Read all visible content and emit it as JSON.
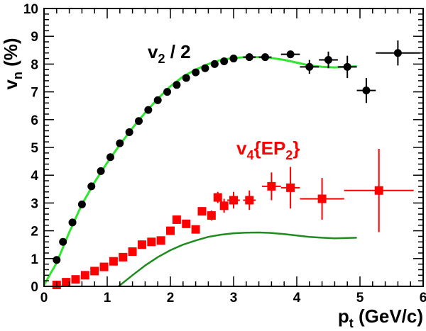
{
  "chart_data": {
    "type": "scatter",
    "title": "",
    "xlabel_main": "p",
    "xlabel_sub": "t",
    "xlabel_rest": " (GeV/c)",
    "ylabel_main": "v",
    "ylabel_sub": "n",
    "ylabel_rest": " (%)",
    "xlim": [
      0,
      6
    ],
    "ylim": [
      0,
      10
    ],
    "xticks": [
      "0",
      "1",
      "2",
      "3",
      "4",
      "5",
      "6"
    ],
    "yticks": [
      "0",
      "1",
      "2",
      "3",
      "4",
      "5",
      "6",
      "7",
      "8",
      "9",
      "10"
    ],
    "grid": false,
    "annotations": {
      "v2": {
        "main": "v",
        "sub": "2",
        "rest": " / 2",
        "color": "#000000"
      },
      "v4": {
        "main": "v",
        "sub": "4",
        "brace_open": "{EP",
        "sub2": "2",
        "brace_close": "}",
        "color": "#ff0000"
      }
    },
    "series": [
      {
        "marker": "circle",
        "color": "#000000",
        "points": [
          {
            "x": 0.2,
            "y": 0.95,
            "xerr": 0.04,
            "yerr": 0.05
          },
          {
            "x": 0.3,
            "y": 1.6,
            "xerr": 0.05,
            "yerr": 0.05
          },
          {
            "x": 0.45,
            "y": 2.3,
            "xerr": 0.05,
            "yerr": 0.05
          },
          {
            "x": 0.6,
            "y": 2.95,
            "xerr": 0.05,
            "yerr": 0.05
          },
          {
            "x": 0.75,
            "y": 3.6,
            "xerr": 0.05,
            "yerr": 0.05
          },
          {
            "x": 0.9,
            "y": 4.15,
            "xerr": 0.05,
            "yerr": 0.05
          },
          {
            "x": 1.05,
            "y": 4.65,
            "xerr": 0.05,
            "yerr": 0.05
          },
          {
            "x": 1.2,
            "y": 5.15,
            "xerr": 0.05,
            "yerr": 0.05
          },
          {
            "x": 1.35,
            "y": 5.55,
            "xerr": 0.05,
            "yerr": 0.05
          },
          {
            "x": 1.5,
            "y": 5.95,
            "xerr": 0.05,
            "yerr": 0.05
          },
          {
            "x": 1.65,
            "y": 6.35,
            "xerr": 0.05,
            "yerr": 0.05
          },
          {
            "x": 1.8,
            "y": 6.7,
            "xerr": 0.05,
            "yerr": 0.05
          },
          {
            "x": 1.95,
            "y": 7.0,
            "xerr": 0.05,
            "yerr": 0.05
          },
          {
            "x": 2.1,
            "y": 7.25,
            "xerr": 0.05,
            "yerr": 0.05
          },
          {
            "x": 2.25,
            "y": 7.5,
            "xerr": 0.05,
            "yerr": 0.05
          },
          {
            "x": 2.4,
            "y": 7.7,
            "xerr": 0.05,
            "yerr": 0.05
          },
          {
            "x": 2.55,
            "y": 7.85,
            "xerr": 0.05,
            "yerr": 0.05
          },
          {
            "x": 2.7,
            "y": 8.0,
            "xerr": 0.05,
            "yerr": 0.05
          },
          {
            "x": 2.85,
            "y": 8.1,
            "xerr": 0.05,
            "yerr": 0.05
          },
          {
            "x": 3.0,
            "y": 8.2,
            "xerr": 0.05,
            "yerr": 0.05
          },
          {
            "x": 3.25,
            "y": 8.25,
            "xerr": 0.1,
            "yerr": 0.05
          },
          {
            "x": 3.5,
            "y": 8.25,
            "xerr": 0.1,
            "yerr": 0.05
          },
          {
            "x": 3.9,
            "y": 8.35,
            "xerr": 0.15,
            "yerr": 0.12
          },
          {
            "x": 4.2,
            "y": 7.9,
            "xerr": 0.15,
            "yerr": 0.25
          },
          {
            "x": 4.5,
            "y": 8.15,
            "xerr": 0.15,
            "yerr": 0.3
          },
          {
            "x": 4.8,
            "y": 7.9,
            "xerr": 0.15,
            "yerr": 0.4
          },
          {
            "x": 5.1,
            "y": 7.05,
            "xerr": 0.15,
            "yerr": 0.45
          },
          {
            "x": 5.6,
            "y": 8.4,
            "xerr": 0.35,
            "yerr": 0.45
          }
        ]
      },
      {
        "marker": "square",
        "color": "#ff0000",
        "points": [
          {
            "x": 0.2,
            "y": 0.05,
            "xerr": 0.05,
            "yerr": 0.05
          },
          {
            "x": 0.35,
            "y": 0.15,
            "xerr": 0.05,
            "yerr": 0.05
          },
          {
            "x": 0.5,
            "y": 0.25,
            "xerr": 0.05,
            "yerr": 0.05
          },
          {
            "x": 0.65,
            "y": 0.4,
            "xerr": 0.05,
            "yerr": 0.05
          },
          {
            "x": 0.8,
            "y": 0.55,
            "xerr": 0.05,
            "yerr": 0.05
          },
          {
            "x": 0.95,
            "y": 0.7,
            "xerr": 0.05,
            "yerr": 0.05
          },
          {
            "x": 1.1,
            "y": 0.9,
            "xerr": 0.05,
            "yerr": 0.05
          },
          {
            "x": 1.25,
            "y": 1.05,
            "xerr": 0.05,
            "yerr": 0.05
          },
          {
            "x": 1.4,
            "y": 1.25,
            "xerr": 0.05,
            "yerr": 0.08
          },
          {
            "x": 1.55,
            "y": 1.5,
            "xerr": 0.05,
            "yerr": 0.08
          },
          {
            "x": 1.7,
            "y": 1.6,
            "xerr": 0.05,
            "yerr": 0.1
          },
          {
            "x": 1.85,
            "y": 1.65,
            "xerr": 0.05,
            "yerr": 0.1
          },
          {
            "x": 2.0,
            "y": 2.0,
            "xerr": 0.05,
            "yerr": 0.12
          },
          {
            "x": 2.1,
            "y": 2.4,
            "xerr": 0.05,
            "yerr": 0.12
          },
          {
            "x": 2.25,
            "y": 2.25,
            "xerr": 0.05,
            "yerr": 0.15
          },
          {
            "x": 2.4,
            "y": 2.05,
            "xerr": 0.05,
            "yerr": 0.15
          },
          {
            "x": 2.5,
            "y": 2.7,
            "xerr": 0.05,
            "yerr": 0.15
          },
          {
            "x": 2.65,
            "y": 2.55,
            "xerr": 0.05,
            "yerr": 0.18
          },
          {
            "x": 2.75,
            "y": 3.2,
            "xerr": 0.05,
            "yerr": 0.2
          },
          {
            "x": 2.85,
            "y": 2.9,
            "xerr": 0.05,
            "yerr": 0.25
          },
          {
            "x": 3.0,
            "y": 3.1,
            "xerr": 0.1,
            "yerr": 0.3
          },
          {
            "x": 3.25,
            "y": 3.1,
            "xerr": 0.1,
            "yerr": 0.35
          },
          {
            "x": 3.6,
            "y": 3.6,
            "xerr": 0.15,
            "yerr": 0.5
          },
          {
            "x": 3.9,
            "y": 3.55,
            "xerr": 0.15,
            "yerr": 0.75
          },
          {
            "x": 4.4,
            "y": 3.15,
            "xerr": 0.35,
            "yerr": 0.75
          },
          {
            "x": 5.3,
            "y": 3.45,
            "xerr": 0.55,
            "yerr": 1.5
          }
        ]
      }
    ],
    "curves": [
      {
        "color": "#2ee62e",
        "points": [
          [
            0.0,
            0.05
          ],
          [
            0.2,
            0.85
          ],
          [
            0.4,
            1.95
          ],
          [
            0.6,
            2.95
          ],
          [
            0.8,
            3.75
          ],
          [
            1.0,
            4.45
          ],
          [
            1.2,
            5.1
          ],
          [
            1.4,
            5.7
          ],
          [
            1.6,
            6.25
          ],
          [
            1.8,
            6.75
          ],
          [
            2.0,
            7.2
          ],
          [
            2.2,
            7.55
          ],
          [
            2.4,
            7.8
          ],
          [
            2.6,
            8.0
          ],
          [
            2.8,
            8.15
          ],
          [
            3.0,
            8.22
          ],
          [
            3.2,
            8.25
          ],
          [
            3.4,
            8.25
          ],
          [
            3.6,
            8.22
          ],
          [
            3.8,
            8.15
          ],
          [
            4.0,
            8.05
          ],
          [
            4.2,
            7.95
          ],
          [
            4.4,
            7.9
          ],
          [
            4.6,
            7.88
          ],
          [
            4.8,
            7.9
          ],
          [
            4.95,
            7.92
          ]
        ]
      },
      {
        "color": "#1e8c1e",
        "points": [
          [
            1.18,
            0.0
          ],
          [
            1.4,
            0.4
          ],
          [
            1.6,
            0.75
          ],
          [
            1.8,
            1.05
          ],
          [
            2.0,
            1.3
          ],
          [
            2.2,
            1.5
          ],
          [
            2.4,
            1.65
          ],
          [
            2.6,
            1.78
          ],
          [
            2.8,
            1.86
          ],
          [
            3.0,
            1.91
          ],
          [
            3.2,
            1.93
          ],
          [
            3.4,
            1.94
          ],
          [
            3.6,
            1.92
          ],
          [
            3.8,
            1.88
          ],
          [
            4.0,
            1.83
          ],
          [
            4.2,
            1.78
          ],
          [
            4.4,
            1.75
          ],
          [
            4.6,
            1.73
          ],
          [
            4.8,
            1.74
          ],
          [
            4.95,
            1.75
          ]
        ]
      }
    ],
    "baseline": {
      "y": 0,
      "color": "#aa0000"
    }
  }
}
